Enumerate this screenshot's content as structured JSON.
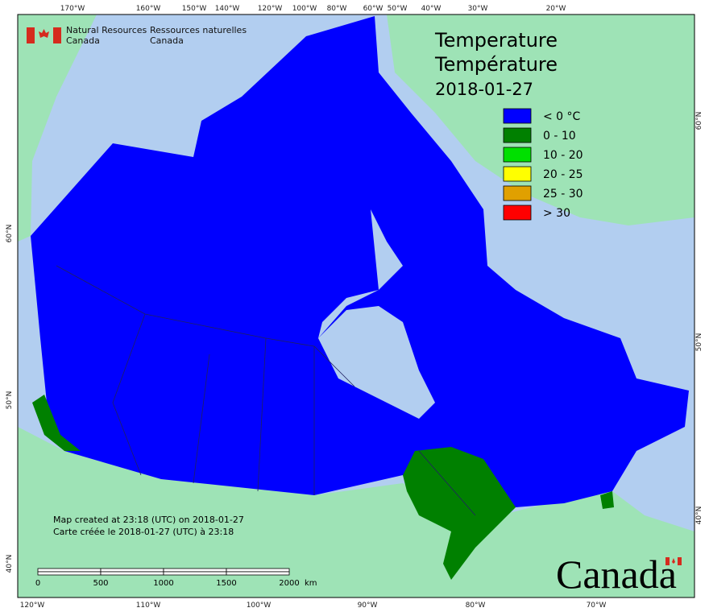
{
  "header": {
    "org_en": [
      "Natural Resources",
      "Canada"
    ],
    "org_fr": [
      "Ressources naturelles",
      "Canada"
    ]
  },
  "title": {
    "lines": [
      "Temperature",
      "Température"
    ],
    "date": "2018-01-27"
  },
  "legend": [
    {
      "label": "< 0 °C",
      "color": "#0000ff"
    },
    {
      "label": "0 - 10",
      "color": "#008000"
    },
    {
      "label": "10 - 20",
      "color": "#00e000"
    },
    {
      "label": "20 - 25",
      "color": "#ffff00"
    },
    {
      "label": "25 - 30",
      "color": "#e0a000"
    },
    {
      "label": "> 30",
      "color": "#ff0000"
    }
  ],
  "graticule": {
    "top": [
      "170°W",
      "160°W",
      "150°W",
      "140°W",
      "120°W",
      "100°W",
      "80°W",
      "60°W",
      "50°W",
      "40°W",
      "30°W",
      "20°W"
    ],
    "bottom": [
      "120°W",
      "110°W",
      "100°W",
      "90°W",
      "80°W",
      "70°W"
    ],
    "left": [
      "60°N",
      "50°N",
      "40°N"
    ],
    "right": [
      "60°N",
      "50°N",
      "40°N"
    ]
  },
  "notes": [
    "Map created at 23:18 (UTC) on 2018-01-27",
    "Carte créée le 2018-01-27 (UTC) à 23:18"
  ],
  "scale": {
    "ticks": [
      "0",
      "500",
      "1000",
      "1500",
      "2000"
    ],
    "unit": "km"
  },
  "wordmark": "Canada"
}
